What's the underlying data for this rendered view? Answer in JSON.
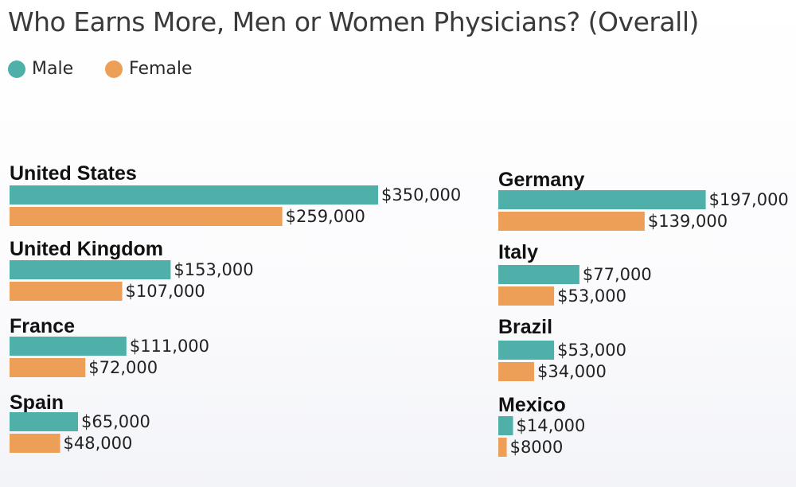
{
  "colors": {
    "male": "#4fb0aa",
    "female": "#ee9f57"
  },
  "chart_data": {
    "type": "bar",
    "orientation": "horizontal",
    "title": "Who Earns More, Men or Women Physicians? (Overall)",
    "legend": {
      "placement": "top-left",
      "entries": [
        "Male",
        "Female"
      ]
    },
    "grid": false,
    "categories": [
      "United States",
      "United Kingdom",
      "France",
      "Spain",
      "Germany",
      "Italy",
      "Brazil",
      "Mexico"
    ],
    "series": [
      {
        "name": "Male",
        "values": [
          350000,
          153000,
          111000,
          65000,
          197000,
          77000,
          53000,
          14000
        ]
      },
      {
        "name": "Female",
        "values": [
          259000,
          107000,
          72000,
          48000,
          139000,
          53000,
          34000,
          8000
        ]
      }
    ],
    "data_labels": [
      [
        "$350,000",
        "$153,000",
        "$111,000",
        "$65,000",
        "$197,000",
        "$77,000",
        "$53,000",
        "$14,000"
      ],
      [
        "$259,000",
        "$107,000",
        "$72,000",
        "$48,000",
        "$139,000",
        "$53,000",
        "$34,000",
        "$8000"
      ]
    ]
  }
}
